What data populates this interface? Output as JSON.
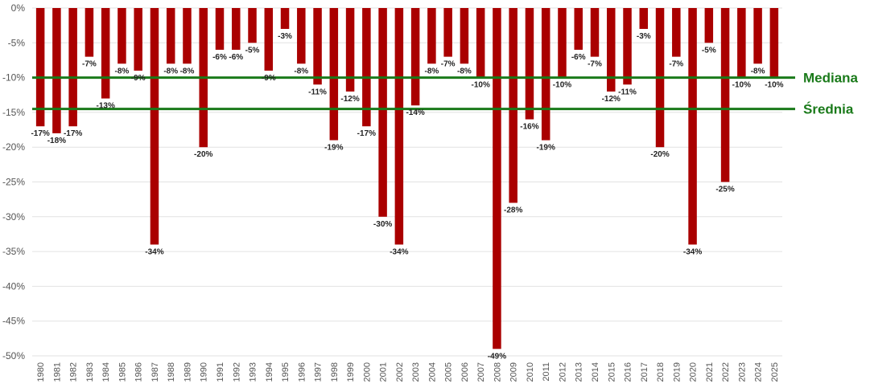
{
  "chart_data": {
    "type": "bar",
    "categories": [
      "1980",
      "1981",
      "1982",
      "1983",
      "1984",
      "1985",
      "1986",
      "1987",
      "1988",
      "1989",
      "1990",
      "1991",
      "1992",
      "1993",
      "1994",
      "1995",
      "1996",
      "1997",
      "1998",
      "1999",
      "2000",
      "2001",
      "2002",
      "2003",
      "2004",
      "2005",
      "2006",
      "2007",
      "2008",
      "2009",
      "2010",
      "2011",
      "2012",
      "2013",
      "2014",
      "2015",
      "2016",
      "2017",
      "2018",
      "2019",
      "2020",
      "2021",
      "2022",
      "2023",
      "2024",
      "2025"
    ],
    "values": [
      -17,
      -18,
      -17,
      -7,
      -13,
      -8,
      -9,
      -34,
      -8,
      -8,
      -20,
      -6,
      -6,
      -5,
      -9,
      -3,
      -8,
      -11,
      -19,
      -12,
      -17,
      -30,
      -34,
      -14,
      -8,
      -7,
      -8,
      -10,
      -49,
      -28,
      -16,
      -19,
      -10,
      -6,
      -7,
      -12,
      -11,
      -3,
      -20,
      -7,
      -34,
      -5,
      -25,
      -10,
      -8,
      -10
    ],
    "value_labels": [
      "-17%",
      "-18%",
      "-17%",
      "-7%",
      "-13%",
      "-8%",
      "-9%",
      "-34%",
      "-8%",
      "-8%",
      "-20%",
      "-6%",
      "-6%",
      "-5%",
      "-9%",
      "-3%",
      "-8%",
      "-11%",
      "-19%",
      "-12%",
      "-17%",
      "-30%",
      "-34%",
      "-14%",
      "-8%",
      "-7%",
      "-8%",
      "-10%",
      "-49%",
      "-28%",
      "-16%",
      "-19%",
      "-10%",
      "-6%",
      "-7%",
      "-12%",
      "-11%",
      "-3%",
      "-20%",
      "-7%",
      "-34%",
      "-5%",
      "-25%",
      "-10%",
      "-8%",
      "-10%"
    ],
    "title": "",
    "xlabel": "",
    "ylabel": "",
    "ylim": [
      -50,
      0
    ],
    "yticks": [
      0,
      -5,
      -10,
      -15,
      -20,
      -25,
      -30,
      -35,
      -40,
      -45,
      -50
    ],
    "ytick_labels": [
      "0%",
      "-5%",
      "-10%",
      "-15%",
      "-20%",
      "-25%",
      "-30%",
      "-35%",
      "-40%",
      "-45%",
      "-50%"
    ],
    "grid": true,
    "bar_color": "#aa0000",
    "reference_lines": [
      {
        "label": "Mediana",
        "value": -10,
        "color": "#1a7a1a"
      },
      {
        "label": "Średnia",
        "value": -14.5,
        "color": "#1a7a1a"
      }
    ]
  }
}
